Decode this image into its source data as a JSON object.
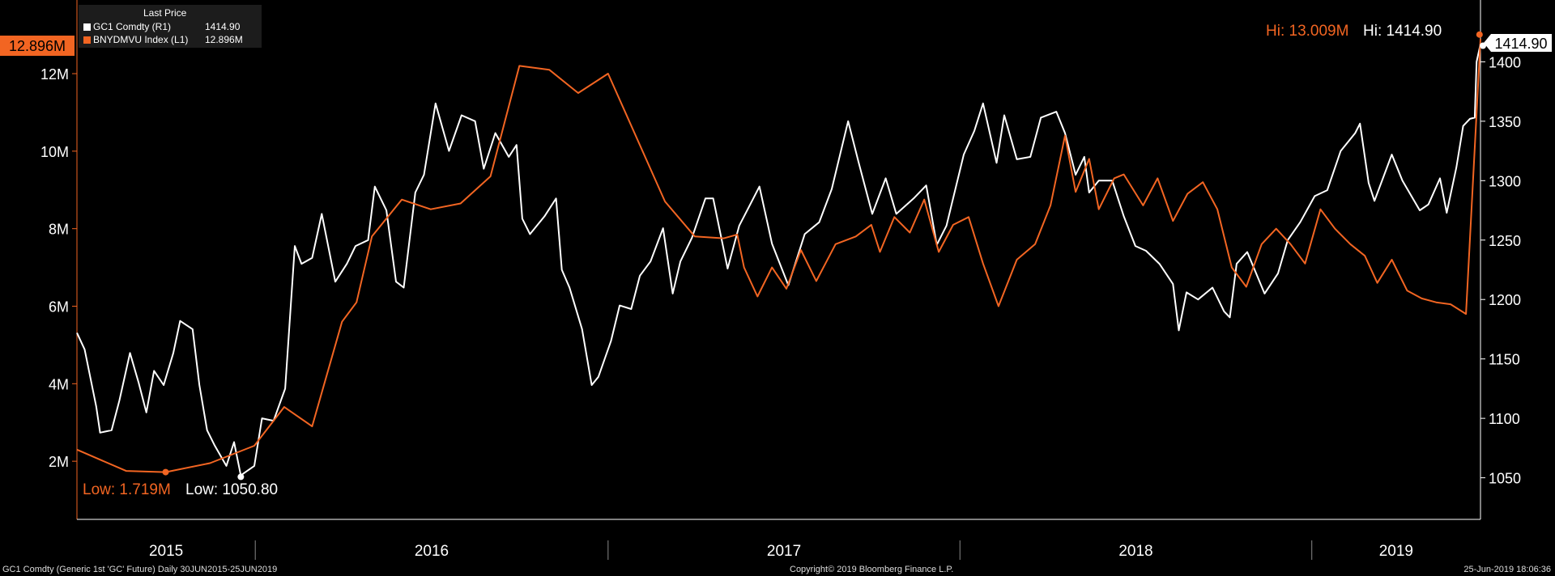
{
  "chart_data": {
    "type": "line",
    "legend": {
      "header": "Last Price",
      "placement": "top-left",
      "items": [
        {
          "label": "GC1 Comdty  (R1)",
          "value": "1414.90",
          "color": "#ffffff"
        },
        {
          "label": "BNYDMVU Index  (L1)",
          "value": "12.896M",
          "color": "#f26522"
        }
      ]
    },
    "x_axis": {
      "range": [
        "2015-06-30",
        "2019-06-25"
      ],
      "year_labels": [
        "2015",
        "2016",
        "2017",
        "2018",
        "2019"
      ]
    },
    "left_axis": {
      "range": [
        500000,
        13900000
      ],
      "ticks": [
        2000000,
        4000000,
        6000000,
        8000000,
        10000000,
        12000000
      ],
      "tick_labels": [
        "2M",
        "4M",
        "6M",
        "8M",
        "10M",
        "12M"
      ],
      "last_value_label": "12.896M",
      "color": "#f26522"
    },
    "right_axis": {
      "range": [
        1015,
        1452
      ],
      "ticks": [
        1050,
        1100,
        1150,
        1200,
        1250,
        1300,
        1350,
        1400
      ],
      "tick_labels": [
        "1050",
        "1100",
        "1150",
        "1200",
        "1250",
        "1300",
        "1350",
        "1400"
      ],
      "last_value_label": "1414.90"
    },
    "grid": false,
    "series": [
      {
        "name": "GC1 Comdty",
        "axis": "right",
        "color": "#ffffff",
        "points": [
          [
            "2015-06-30",
            1172
          ],
          [
            "2015-07-08",
            1158
          ],
          [
            "2015-07-20",
            1110
          ],
          [
            "2015-07-24",
            1088
          ],
          [
            "2015-08-05",
            1090
          ],
          [
            "2015-08-13",
            1115
          ],
          [
            "2015-08-24",
            1155
          ],
          [
            "2015-09-02",
            1130
          ],
          [
            "2015-09-10",
            1105
          ],
          [
            "2015-09-18",
            1140
          ],
          [
            "2015-09-28",
            1128
          ],
          [
            "2015-10-08",
            1155
          ],
          [
            "2015-10-15",
            1182
          ],
          [
            "2015-10-28",
            1175
          ],
          [
            "2015-11-04",
            1128
          ],
          [
            "2015-11-12",
            1090
          ],
          [
            "2015-11-20",
            1077
          ],
          [
            "2015-12-02",
            1060
          ],
          [
            "2015-12-10",
            1080
          ],
          [
            "2015-12-17",
            1052
          ],
          [
            "2015-12-31",
            1060
          ],
          [
            "2016-01-08",
            1100
          ],
          [
            "2016-01-20",
            1098
          ],
          [
            "2016-02-01",
            1125
          ],
          [
            "2016-02-11",
            1245
          ],
          [
            "2016-02-18",
            1230
          ],
          [
            "2016-02-29",
            1235
          ],
          [
            "2016-03-10",
            1272
          ],
          [
            "2016-03-24",
            1215
          ],
          [
            "2016-04-05",
            1230
          ],
          [
            "2016-04-14",
            1245
          ],
          [
            "2016-04-27",
            1250
          ],
          [
            "2016-05-04",
            1295
          ],
          [
            "2016-05-16",
            1275
          ],
          [
            "2016-05-26",
            1215
          ],
          [
            "2016-06-03",
            1210
          ],
          [
            "2016-06-15",
            1290
          ],
          [
            "2016-06-24",
            1305
          ],
          [
            "2016-07-06",
            1365
          ],
          [
            "2016-07-20",
            1325
          ],
          [
            "2016-08-02",
            1355
          ],
          [
            "2016-08-16",
            1350
          ],
          [
            "2016-08-25",
            1310
          ],
          [
            "2016-09-06",
            1340
          ],
          [
            "2016-09-20",
            1320
          ],
          [
            "2016-09-28",
            1330
          ],
          [
            "2016-10-04",
            1268
          ],
          [
            "2016-10-12",
            1255
          ],
          [
            "2016-10-27",
            1270
          ],
          [
            "2016-11-08",
            1285
          ],
          [
            "2016-11-14",
            1225
          ],
          [
            "2016-11-22",
            1210
          ],
          [
            "2016-12-05",
            1175
          ],
          [
            "2016-12-15",
            1128
          ],
          [
            "2016-12-22",
            1135
          ],
          [
            "2017-01-04",
            1165
          ],
          [
            "2017-01-13",
            1195
          ],
          [
            "2017-01-25",
            1192
          ],
          [
            "2017-02-03",
            1220
          ],
          [
            "2017-02-14",
            1232
          ],
          [
            "2017-02-27",
            1260
          ],
          [
            "2017-03-09",
            1205
          ],
          [
            "2017-03-17",
            1232
          ],
          [
            "2017-03-29",
            1252
          ],
          [
            "2017-04-12",
            1285
          ],
          [
            "2017-04-20",
            1285
          ],
          [
            "2017-05-05",
            1226
          ],
          [
            "2017-05-17",
            1262
          ],
          [
            "2017-06-07",
            1295
          ],
          [
            "2017-06-20",
            1247
          ],
          [
            "2017-07-07",
            1212
          ],
          [
            "2017-07-24",
            1255
          ],
          [
            "2017-08-08",
            1265
          ],
          [
            "2017-08-21",
            1293
          ],
          [
            "2017-09-07",
            1350
          ],
          [
            "2017-09-18",
            1315
          ],
          [
            "2017-10-02",
            1272
          ],
          [
            "2017-10-16",
            1302
          ],
          [
            "2017-10-27",
            1272
          ],
          [
            "2017-11-14",
            1285
          ],
          [
            "2017-11-27",
            1296
          ],
          [
            "2017-12-08",
            1246
          ],
          [
            "2017-12-18",
            1262
          ],
          [
            "2018-01-05",
            1322
          ],
          [
            "2018-01-16",
            1342
          ],
          [
            "2018-01-25",
            1365
          ],
          [
            "2018-02-08",
            1315
          ],
          [
            "2018-02-16",
            1355
          ],
          [
            "2018-03-01",
            1318
          ],
          [
            "2018-03-15",
            1320
          ],
          [
            "2018-03-26",
            1353
          ],
          [
            "2018-04-11",
            1358
          ],
          [
            "2018-04-20",
            1340
          ],
          [
            "2018-05-01",
            1305
          ],
          [
            "2018-05-10",
            1320
          ],
          [
            "2018-05-15",
            1290
          ],
          [
            "2018-05-25",
            1300
          ],
          [
            "2018-06-08",
            1300
          ],
          [
            "2018-06-20",
            1270
          ],
          [
            "2018-07-02",
            1245
          ],
          [
            "2018-07-13",
            1241
          ],
          [
            "2018-07-27",
            1230
          ],
          [
            "2018-08-10",
            1213
          ],
          [
            "2018-08-16",
            1174
          ],
          [
            "2018-08-24",
            1206
          ],
          [
            "2018-09-05",
            1200
          ],
          [
            "2018-09-20",
            1210
          ],
          [
            "2018-10-02",
            1190
          ],
          [
            "2018-10-08",
            1185
          ],
          [
            "2018-10-15",
            1230
          ],
          [
            "2018-10-26",
            1240
          ],
          [
            "2018-11-13",
            1205
          ],
          [
            "2018-11-27",
            1222
          ],
          [
            "2018-12-07",
            1250
          ],
          [
            "2018-12-20",
            1265
          ],
          [
            "2019-01-04",
            1287
          ],
          [
            "2019-01-17",
            1292
          ],
          [
            "2019-01-31",
            1325
          ],
          [
            "2019-02-15",
            1340
          ],
          [
            "2019-02-20",
            1348
          ],
          [
            "2019-03-01",
            1298
          ],
          [
            "2019-03-07",
            1283
          ],
          [
            "2019-03-25",
            1322
          ],
          [
            "2019-04-05",
            1300
          ],
          [
            "2019-04-23",
            1275
          ],
          [
            "2019-05-02",
            1280
          ],
          [
            "2019-05-14",
            1302
          ],
          [
            "2019-05-21",
            1273
          ],
          [
            "2019-05-31",
            1311
          ],
          [
            "2019-06-07",
            1346
          ],
          [
            "2019-06-14",
            1352
          ],
          [
            "2019-06-19",
            1353
          ],
          [
            "2019-06-21",
            1400
          ],
          [
            "2019-06-25",
            1414.9
          ]
        ]
      },
      {
        "name": "BNYDMVU Index",
        "axis": "left",
        "color": "#f26522",
        "points": [
          [
            "2015-06-30",
            2300000
          ],
          [
            "2015-08-20",
            1750000
          ],
          [
            "2015-09-30",
            1719000
          ],
          [
            "2015-11-15",
            1950000
          ],
          [
            "2015-12-31",
            2400000
          ],
          [
            "2016-01-31",
            3400000
          ],
          [
            "2016-02-29",
            2900000
          ],
          [
            "2016-03-31",
            5600000
          ],
          [
            "2016-04-15",
            6100000
          ],
          [
            "2016-05-01",
            7800000
          ],
          [
            "2016-06-01",
            8750000
          ],
          [
            "2016-07-01",
            8500000
          ],
          [
            "2016-08-01",
            8650000
          ],
          [
            "2016-09-01",
            9350000
          ],
          [
            "2016-10-01",
            12200000
          ],
          [
            "2016-11-01",
            12100000
          ],
          [
            "2016-12-01",
            11500000
          ],
          [
            "2017-01-01",
            12000000
          ],
          [
            "2017-03-01",
            8700000
          ],
          [
            "2017-04-01",
            7800000
          ],
          [
            "2017-05-01",
            7750000
          ],
          [
            "2017-05-15",
            7850000
          ],
          [
            "2017-05-22",
            7000000
          ],
          [
            "2017-06-05",
            6250000
          ],
          [
            "2017-06-20",
            7000000
          ],
          [
            "2017-07-05",
            6450000
          ],
          [
            "2017-07-20",
            7450000
          ],
          [
            "2017-08-05",
            6650000
          ],
          [
            "2017-08-25",
            7600000
          ],
          [
            "2017-09-15",
            7800000
          ],
          [
            "2017-10-01",
            8100000
          ],
          [
            "2017-10-10",
            7400000
          ],
          [
            "2017-10-25",
            8300000
          ],
          [
            "2017-11-10",
            7900000
          ],
          [
            "2017-11-25",
            8750000
          ],
          [
            "2017-12-10",
            7400000
          ],
          [
            "2017-12-25",
            8100000
          ],
          [
            "2018-01-10",
            8300000
          ],
          [
            "2018-01-25",
            7100000
          ],
          [
            "2018-02-10",
            6000000
          ],
          [
            "2018-03-01",
            7200000
          ],
          [
            "2018-03-20",
            7600000
          ],
          [
            "2018-04-05",
            8600000
          ],
          [
            "2018-04-20",
            10400000
          ],
          [
            "2018-05-01",
            8950000
          ],
          [
            "2018-05-15",
            9800000
          ],
          [
            "2018-05-25",
            8500000
          ],
          [
            "2018-06-10",
            9300000
          ],
          [
            "2018-06-20",
            9400000
          ],
          [
            "2018-07-10",
            8600000
          ],
          [
            "2018-07-25",
            9300000
          ],
          [
            "2018-08-10",
            8200000
          ],
          [
            "2018-08-25",
            8900000
          ],
          [
            "2018-09-10",
            9200000
          ],
          [
            "2018-09-25",
            8500000
          ],
          [
            "2018-10-10",
            7000000
          ],
          [
            "2018-10-25",
            6500000
          ],
          [
            "2018-11-10",
            7600000
          ],
          [
            "2018-11-25",
            8000000
          ],
          [
            "2018-12-10",
            7600000
          ],
          [
            "2018-12-25",
            7100000
          ],
          [
            "2019-01-10",
            8500000
          ],
          [
            "2019-01-25",
            8000000
          ],
          [
            "2019-02-10",
            7600000
          ],
          [
            "2019-02-25",
            7300000
          ],
          [
            "2019-03-10",
            6600000
          ],
          [
            "2019-03-25",
            7200000
          ],
          [
            "2019-04-10",
            6400000
          ],
          [
            "2019-04-25",
            6200000
          ],
          [
            "2019-05-10",
            6100000
          ],
          [
            "2019-05-25",
            6050000
          ],
          [
            "2019-06-10",
            5800000
          ],
          [
            "2019-06-25",
            12896000
          ]
        ]
      }
    ],
    "annotations": {
      "high_left": {
        "text": "Hi: 13.009M",
        "date": "2019-06-24",
        "value": 13009000
      },
      "high_right": {
        "text": "Hi: 1414.90",
        "date": "2019-06-25",
        "value": 1414.9
      },
      "low_left": {
        "text": "Low: 1.719M",
        "date": "2015-09-30",
        "value": 1719000
      },
      "low_right": {
        "text": "Low: 1050.80",
        "date": "2015-12-17",
        "value": 1050.8
      }
    }
  },
  "footer": {
    "left": "GC1 Comdty (Generic 1st 'GC' Future)  Daily 30JUN2015-25JUN2019",
    "center": "Copyright© 2019 Bloomberg Finance L.P.",
    "right": "25-Jun-2019 18:06:36"
  }
}
